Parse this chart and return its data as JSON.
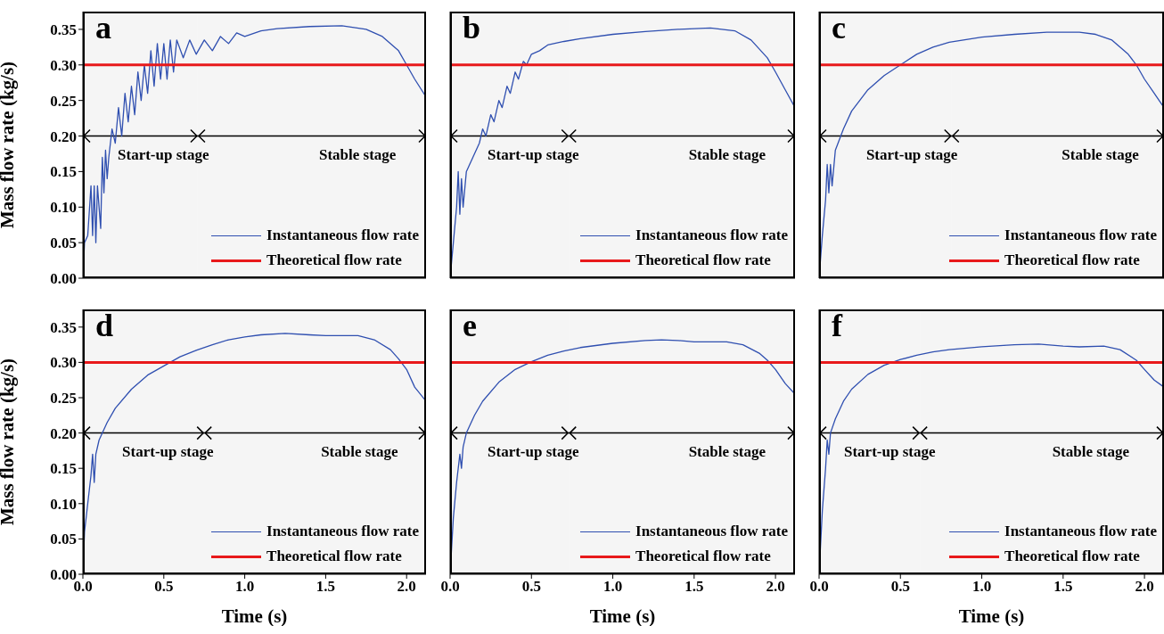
{
  "chart_data": [
    {
      "type": "line",
      "title": "a",
      "ylabel": "Mass flow rate (kg/s)",
      "xlim": [
        0,
        2.12
      ],
      "ylim": [
        0,
        0.375
      ],
      "xticks": [
        {
          "value": 0,
          "label": null
        },
        {
          "value": 0.5,
          "label": null
        },
        {
          "value": 1,
          "label": null
        },
        {
          "value": 1.5,
          "label": null
        },
        {
          "value": 2,
          "label": null
        }
      ],
      "yticks": [
        {
          "value": 0,
          "label": "0.00"
        },
        {
          "value": 0.05,
          "label": "0.05"
        },
        {
          "value": 0.1,
          "label": "0.10"
        },
        {
          "value": 0.15,
          "label": "0.15"
        },
        {
          "value": 0.2,
          "label": "0.20"
        },
        {
          "value": 0.25,
          "label": "0.25"
        },
        {
          "value": 0.3,
          "label": "0.30"
        },
        {
          "value": 0.35,
          "label": "0.35"
        }
      ],
      "tick_labels": "y",
      "legend": "bottom right",
      "grid": false,
      "ref_lines": [
        {
          "axis": "y",
          "value": 0.2,
          "color": "#000000"
        }
      ],
      "bands": [
        {
          "axis": "x",
          "from": 0,
          "to": 0.71,
          "label": "Start-up stage",
          "color": "#000000"
        },
        {
          "axis": "x",
          "from": 0.71,
          "to": 2.12,
          "label": "Stable stage",
          "color": "#000000"
        }
      ],
      "series": [
        {
          "name": "Instantaneous flow rate",
          "color": "#2f4fb0",
          "x": [
            0,
            0.01,
            0.03,
            0.05,
            0.06,
            0.07,
            0.08,
            0.09,
            0.11,
            0.12,
            0.13,
            0.14,
            0.15,
            0.16,
            0.18,
            0.2,
            0.22,
            0.24,
            0.26,
            0.28,
            0.3,
            0.32,
            0.34,
            0.36,
            0.38,
            0.4,
            0.42,
            0.44,
            0.46,
            0.48,
            0.5,
            0.52,
            0.54,
            0.56,
            0.58,
            0.62,
            0.66,
            0.7,
            0.75,
            0.8,
            0.85,
            0.9,
            0.95,
            1.0,
            1.1,
            1.2,
            1.4,
            1.6,
            1.75,
            1.85,
            1.95,
            2.0,
            2.05,
            2.12
          ],
          "values": [
            0,
            0.05,
            0.06,
            0.13,
            0.06,
            0.13,
            0.05,
            0.13,
            0.07,
            0.17,
            0.12,
            0.18,
            0.14,
            0.17,
            0.21,
            0.19,
            0.24,
            0.2,
            0.26,
            0.22,
            0.27,
            0.23,
            0.29,
            0.25,
            0.3,
            0.26,
            0.32,
            0.27,
            0.33,
            0.28,
            0.33,
            0.28,
            0.335,
            0.29,
            0.335,
            0.31,
            0.335,
            0.315,
            0.335,
            0.32,
            0.34,
            0.33,
            0.345,
            0.34,
            0.348,
            0.351,
            0.354,
            0.355,
            0.35,
            0.34,
            0.32,
            0.3,
            0.28,
            0.255
          ]
        },
        {
          "name": "Theoretical flow rate",
          "color": "#e8191b",
          "x": [
            0,
            2.12
          ],
          "values": [
            0.3,
            0.3
          ]
        }
      ]
    },
    {
      "type": "line",
      "title": "b",
      "ref_lines": [
        {
          "axis": "y",
          "value": 0.2,
          "color": "#000000"
        }
      ],
      "xlim": [
        0,
        2.12
      ],
      "ylim": [
        0,
        0.375
      ],
      "xticks": [
        {
          "value": 0,
          "label": null
        },
        {
          "value": 0.5,
          "label": null
        },
        {
          "value": 1,
          "label": null
        },
        {
          "value": 1.5,
          "label": null
        },
        {
          "value": 2,
          "label": null
        }
      ],
      "yticks": [
        {
          "value": 0,
          "label": null
        },
        {
          "value": 0.05,
          "label": null
        },
        {
          "value": 0.1,
          "label": null
        },
        {
          "value": 0.15,
          "label": null
        },
        {
          "value": 0.2,
          "label": null
        },
        {
          "value": 0.25,
          "label": null
        },
        {
          "value": 0.3,
          "label": null
        },
        {
          "value": 0.35,
          "label": null
        }
      ],
      "tick_labels": false,
      "legend": "bottom right",
      "grid": false,
      "bands": [
        {
          "axis": "x",
          "from": 0,
          "to": 0.73,
          "label": "Start-up stage",
          "color": "#000000"
        },
        {
          "axis": "x",
          "from": 0.73,
          "to": 2.12,
          "label": "Stable stage",
          "color": "#000000"
        }
      ],
      "series": [
        {
          "name": "Instantaneous flow rate",
          "color": "#2f4fb0",
          "x": [
            0,
            0.02,
            0.04,
            0.05,
            0.06,
            0.07,
            0.08,
            0.1,
            0.14,
            0.18,
            0.2,
            0.22,
            0.25,
            0.27,
            0.3,
            0.32,
            0.35,
            0.37,
            0.4,
            0.42,
            0.45,
            0.47,
            0.5,
            0.55,
            0.6,
            0.7,
            0.8,
            1.0,
            1.2,
            1.4,
            1.6,
            1.75,
            1.85,
            1.95,
            2.0,
            2.06,
            2.12
          ],
          "values": [
            0,
            0.05,
            0.1,
            0.15,
            0.09,
            0.14,
            0.1,
            0.15,
            0.17,
            0.19,
            0.21,
            0.2,
            0.23,
            0.22,
            0.25,
            0.24,
            0.27,
            0.26,
            0.29,
            0.28,
            0.305,
            0.3,
            0.315,
            0.32,
            0.328,
            0.333,
            0.337,
            0.343,
            0.347,
            0.35,
            0.352,
            0.348,
            0.335,
            0.31,
            0.29,
            0.265,
            0.24
          ]
        },
        {
          "name": "Theoretical flow rate",
          "color": "#e8191b",
          "x": [
            0,
            2.12
          ],
          "values": [
            0.3,
            0.3
          ]
        }
      ]
    },
    {
      "type": "line",
      "title": "c",
      "ref_lines": [
        {
          "axis": "y",
          "value": 0.2,
          "color": "#000000"
        }
      ],
      "xlim": [
        0,
        2.12
      ],
      "ylim": [
        0,
        0.375
      ],
      "xticks": [
        {
          "value": 0,
          "label": null
        },
        {
          "value": 0.5,
          "label": null
        },
        {
          "value": 1,
          "label": null
        },
        {
          "value": 1.5,
          "label": null
        },
        {
          "value": 2,
          "label": null
        }
      ],
      "yticks": [
        {
          "value": 0,
          "label": null
        },
        {
          "value": 0.05,
          "label": null
        },
        {
          "value": 0.1,
          "label": null
        },
        {
          "value": 0.15,
          "label": null
        },
        {
          "value": 0.2,
          "label": null
        },
        {
          "value": 0.25,
          "label": null
        },
        {
          "value": 0.3,
          "label": null
        },
        {
          "value": 0.35,
          "label": null
        }
      ],
      "tick_labels": false,
      "legend": "bottom right",
      "grid": false,
      "bands": [
        {
          "axis": "x",
          "from": 0,
          "to": 0.815,
          "label": "Start-up stage",
          "color": "#000000"
        },
        {
          "axis": "x",
          "from": 0.815,
          "to": 2.12,
          "label": "Stable stage",
          "color": "#000000"
        }
      ],
      "series": [
        {
          "name": "Instantaneous flow rate",
          "color": "#2f4fb0",
          "x": [
            0,
            0.02,
            0.04,
            0.05,
            0.06,
            0.07,
            0.08,
            0.1,
            0.15,
            0.2,
            0.3,
            0.4,
            0.5,
            0.6,
            0.7,
            0.8,
            1.0,
            1.2,
            1.4,
            1.6,
            1.7,
            1.8,
            1.9,
            1.95,
            2.0,
            2.06,
            2.12
          ],
          "values": [
            0,
            0.06,
            0.11,
            0.16,
            0.12,
            0.16,
            0.13,
            0.18,
            0.21,
            0.235,
            0.265,
            0.285,
            0.3,
            0.315,
            0.325,
            0.332,
            0.339,
            0.343,
            0.346,
            0.346,
            0.343,
            0.335,
            0.315,
            0.3,
            0.28,
            0.26,
            0.24
          ]
        },
        {
          "name": "Theoretical flow rate",
          "color": "#e8191b",
          "x": [
            0,
            2.12
          ],
          "values": [
            0.3,
            0.3
          ]
        }
      ]
    },
    {
      "type": "line",
      "title": "d",
      "ref_lines": [
        {
          "axis": "y",
          "value": 0.2,
          "color": "#000000"
        }
      ],
      "xlabel": "Time (s)",
      "ylabel": "Mass flow rate (kg/s)",
      "xlim": [
        0,
        2.12
      ],
      "ylim": [
        0,
        0.375
      ],
      "xticks": [
        {
          "value": 0,
          "label": "0.0"
        },
        {
          "value": 0.5,
          "label": "0.5"
        },
        {
          "value": 1,
          "label": "1.0"
        },
        {
          "value": 1.5,
          "label": "1.5"
        },
        {
          "value": 2,
          "label": "2.0"
        }
      ],
      "yticks": [
        {
          "value": 0,
          "label": "0.00"
        },
        {
          "value": 0.05,
          "label": "0.05"
        },
        {
          "value": 0.1,
          "label": "0.10"
        },
        {
          "value": 0.15,
          "label": "0.15"
        },
        {
          "value": 0.2,
          "label": "0.20"
        },
        {
          "value": 0.25,
          "label": "0.25"
        },
        {
          "value": 0.3,
          "label": "0.30"
        },
        {
          "value": 0.35,
          "label": "0.35"
        }
      ],
      "legend": "bottom right",
      "grid": false,
      "bands": [
        {
          "axis": "x",
          "from": 0,
          "to": 0.75,
          "label": "Start-up stage",
          "color": "#000000"
        },
        {
          "axis": "x",
          "from": 0.75,
          "to": 2.12,
          "label": "Stable stage",
          "color": "#000000"
        }
      ],
      "series": [
        {
          "name": "Instantaneous flow rate",
          "color": "#2f4fb0",
          "x": [
            0,
            0.01,
            0.03,
            0.05,
            0.06,
            0.07,
            0.08,
            0.1,
            0.15,
            0.2,
            0.3,
            0.4,
            0.5,
            0.6,
            0.7,
            0.8,
            0.9,
            1.0,
            1.1,
            1.25,
            1.4,
            1.5,
            1.7,
            1.8,
            1.9,
            1.95,
            2.0,
            2.05,
            2.12
          ],
          "values": [
            0,
            0.06,
            0.1,
            0.14,
            0.17,
            0.13,
            0.17,
            0.19,
            0.215,
            0.235,
            0.262,
            0.282,
            0.295,
            0.308,
            0.317,
            0.325,
            0.332,
            0.336,
            0.339,
            0.341,
            0.339,
            0.338,
            0.338,
            0.332,
            0.318,
            0.305,
            0.29,
            0.265,
            0.245
          ]
        },
        {
          "name": "Theoretical flow rate",
          "color": "#e8191b",
          "x": [
            0,
            2.12
          ],
          "values": [
            0.3,
            0.3
          ]
        }
      ]
    },
    {
      "type": "line",
      "title": "e",
      "ref_lines": [
        {
          "axis": "y",
          "value": 0.2,
          "color": "#000000"
        }
      ],
      "xlabel": "Time (s)",
      "xlim": [
        0,
        2.12
      ],
      "ylim": [
        0,
        0.375
      ],
      "xticks": [
        {
          "value": 0,
          "label": "0.0"
        },
        {
          "value": 0.5,
          "label": "0.5"
        },
        {
          "value": 1,
          "label": "1.0"
        },
        {
          "value": 1.5,
          "label": "1.5"
        },
        {
          "value": 2,
          "label": "2.0"
        }
      ],
      "yticks": [
        {
          "value": 0,
          "label": null
        },
        {
          "value": 0.05,
          "label": null
        },
        {
          "value": 0.1,
          "label": null
        },
        {
          "value": 0.15,
          "label": null
        },
        {
          "value": 0.2,
          "label": null
        },
        {
          "value": 0.25,
          "label": null
        },
        {
          "value": 0.3,
          "label": null
        },
        {
          "value": 0.35,
          "label": null
        }
      ],
      "tick_labels": "x",
      "legend": "bottom right",
      "grid": false,
      "bands": [
        {
          "axis": "x",
          "from": 0,
          "to": 0.73,
          "label": "Start-up stage",
          "color": "#000000"
        },
        {
          "axis": "x",
          "from": 0.73,
          "to": 2.12,
          "label": "Stable stage",
          "color": "#000000"
        }
      ],
      "series": [
        {
          "name": "Instantaneous flow rate",
          "color": "#2f4fb0",
          "x": [
            0,
            0.02,
            0.04,
            0.06,
            0.07,
            0.08,
            0.1,
            0.15,
            0.2,
            0.3,
            0.4,
            0.5,
            0.6,
            0.7,
            0.8,
            1.0,
            1.2,
            1.3,
            1.4,
            1.5,
            1.7,
            1.8,
            1.9,
            1.95,
            2.0,
            2.06,
            2.12
          ],
          "values": [
            0,
            0.08,
            0.13,
            0.17,
            0.15,
            0.18,
            0.2,
            0.225,
            0.245,
            0.272,
            0.29,
            0.301,
            0.31,
            0.316,
            0.321,
            0.327,
            0.331,
            0.332,
            0.331,
            0.329,
            0.329,
            0.325,
            0.313,
            0.303,
            0.29,
            0.27,
            0.255
          ]
        },
        {
          "name": "Theoretical flow rate",
          "color": "#e8191b",
          "x": [
            0,
            2.12
          ],
          "values": [
            0.3,
            0.3
          ]
        }
      ]
    },
    {
      "type": "line",
      "title": "f",
      "ref_lines": [
        {
          "axis": "y",
          "value": 0.2,
          "color": "#000000"
        }
      ],
      "xlabel": "Time (s)",
      "xlim": [
        0,
        2.12
      ],
      "ylim": [
        0,
        0.375
      ],
      "xticks": [
        {
          "value": 0,
          "label": "0.0"
        },
        {
          "value": 0.5,
          "label": "0.5"
        },
        {
          "value": 1,
          "label": "1.0"
        },
        {
          "value": 1.5,
          "label": "1.5"
        },
        {
          "value": 2,
          "label": "2.0"
        }
      ],
      "yticks": [
        {
          "value": 0,
          "label": null
        },
        {
          "value": 0.05,
          "label": null
        },
        {
          "value": 0.1,
          "label": null
        },
        {
          "value": 0.15,
          "label": null
        },
        {
          "value": 0.2,
          "label": null
        },
        {
          "value": 0.25,
          "label": null
        },
        {
          "value": 0.3,
          "label": null
        },
        {
          "value": 0.35,
          "label": null
        }
      ],
      "tick_labels": "x",
      "legend": "bottom right",
      "grid": false,
      "bands": [
        {
          "axis": "x",
          "from": 0,
          "to": 0.62,
          "label": "Start-up stage",
          "color": "#000000"
        },
        {
          "axis": "x",
          "from": 0.62,
          "to": 2.12,
          "label": "Stable stage",
          "color": "#000000"
        }
      ],
      "series": [
        {
          "name": "Instantaneous flow rate",
          "color": "#2f4fb0",
          "x": [
            0,
            0.02,
            0.04,
            0.05,
            0.06,
            0.07,
            0.1,
            0.15,
            0.2,
            0.3,
            0.4,
            0.5,
            0.6,
            0.7,
            0.8,
            1.0,
            1.2,
            1.35,
            1.5,
            1.6,
            1.75,
            1.85,
            1.95,
            2.0,
            2.06,
            2.12
          ],
          "values": [
            0,
            0.09,
            0.15,
            0.19,
            0.17,
            0.2,
            0.22,
            0.245,
            0.262,
            0.283,
            0.296,
            0.304,
            0.31,
            0.315,
            0.318,
            0.322,
            0.325,
            0.326,
            0.323,
            0.322,
            0.323,
            0.318,
            0.303,
            0.29,
            0.275,
            0.265
          ]
        },
        {
          "name": "Theoretical flow rate",
          "color": "#e8191b",
          "x": [
            0,
            2.12
          ],
          "values": [
            0.3,
            0.3
          ]
        }
      ]
    }
  ]
}
